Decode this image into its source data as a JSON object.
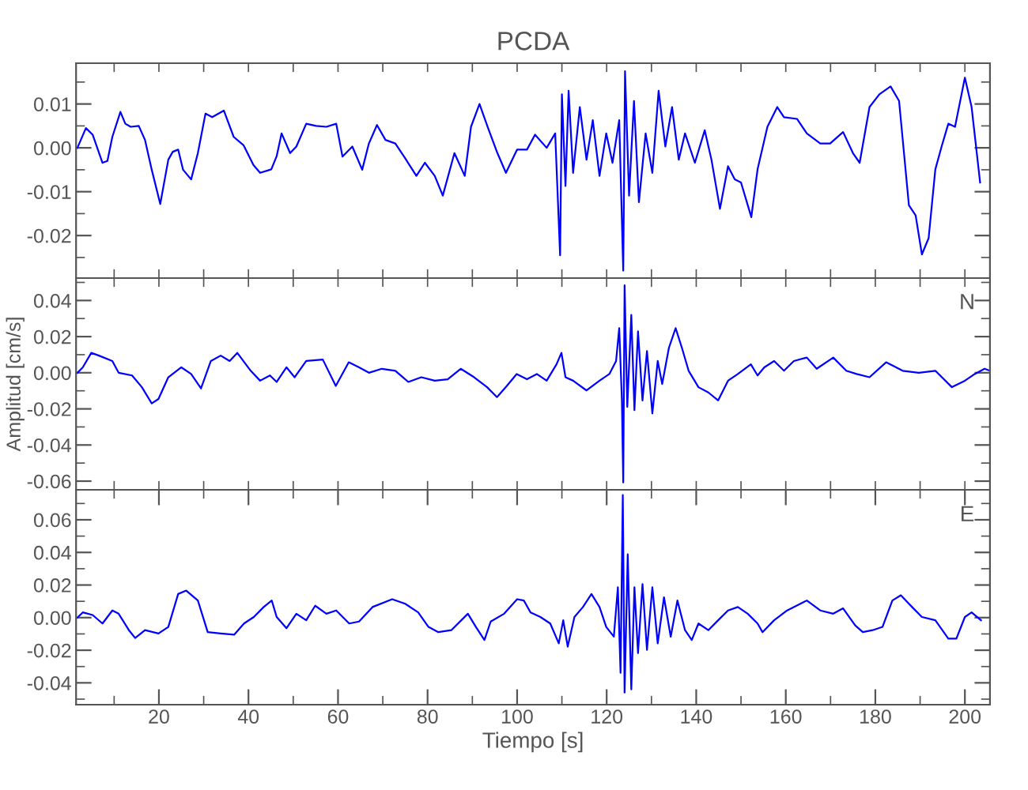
{
  "chart_data": [
    {
      "type": "line",
      "title": "PCDA",
      "xlim": [
        1.5,
        205.6
      ],
      "ylim": [
        -0.0297,
        0.0193
      ],
      "tick_labels": "y",
      "grid": false,
      "marker": "none",
      "line_style": "solid",
      "xticks": [
        {
          "value": 10,
          "label": null
        },
        {
          "value": 20,
          "label": null
        },
        {
          "value": 30,
          "label": null
        },
        {
          "value": 40,
          "label": null
        },
        {
          "value": 50,
          "label": null
        },
        {
          "value": 60,
          "label": null
        },
        {
          "value": 70,
          "label": null
        },
        {
          "value": 80,
          "label": null
        },
        {
          "value": 90,
          "label": null
        },
        {
          "value": 100,
          "label": null
        },
        {
          "value": 110,
          "label": null
        },
        {
          "value": 120,
          "label": null
        },
        {
          "value": 130,
          "label": null
        },
        {
          "value": 140,
          "label": null
        },
        {
          "value": 150,
          "label": null
        },
        {
          "value": 160,
          "label": null
        },
        {
          "value": 170,
          "label": null
        },
        {
          "value": 180,
          "label": null
        },
        {
          "value": 190,
          "label": null
        },
        {
          "value": 200,
          "label": null
        }
      ],
      "yticks": [
        {
          "value": -0.025,
          "label": null
        },
        {
          "value": -0.02,
          "label": "-0.02"
        },
        {
          "value": -0.015,
          "label": null
        },
        {
          "value": -0.01,
          "label": "-0.01"
        },
        {
          "value": -0.005,
          "label": null
        },
        {
          "value": 0.0,
          "label": "0.00"
        },
        {
          "value": 0.005,
          "label": null
        },
        {
          "value": 0.01,
          "label": "0.01"
        },
        {
          "value": 0.015,
          "label": null
        }
      ],
      "series": [
        {
          "color": "#0000ff",
          "x": [
            1.8,
            3.7,
            5.2,
            7.4,
            8.5,
            9.6,
            11.4,
            12.5,
            13.7,
            15.5,
            16.9,
            18.4,
            20.3,
            22.1,
            23.1,
            24.3,
            25.4,
            27.2,
            28.7,
            30.4,
            31.9,
            34.5,
            36.7,
            38.9,
            41.1,
            42.6,
            45.1,
            46.3,
            47.4,
            49.3,
            50.7,
            52.9,
            55.1,
            57.4,
            59.6,
            61.0,
            63.2,
            65.4,
            66.9,
            68.7,
            70.6,
            72.8,
            75.0,
            77.5,
            79.4,
            81.6,
            83.4,
            86.0,
            88.3,
            89.7,
            91.6,
            93.4,
            95.6,
            97.5,
            100.0,
            102.2,
            104.0,
            106.6,
            108.5,
            109.6,
            110.0,
            110.8,
            111.5,
            112.5,
            114.0,
            115.5,
            116.9,
            118.4,
            119.9,
            121.3,
            122.8,
            123.7,
            124.1,
            125.0,
            126.1,
            127.2,
            128.7,
            130.2,
            131.6,
            133.1,
            134.6,
            136.1,
            137.5,
            139.7,
            141.9,
            143.4,
            145.3,
            147.1,
            148.6,
            150.0,
            152.3,
            153.7,
            155.9,
            158.1,
            159.6,
            162.5,
            164.7,
            167.7,
            169.9,
            172.8,
            175.0,
            176.5,
            178.7,
            180.9,
            183.4,
            185.3,
            187.5,
            189.0,
            190.4,
            191.9,
            193.4,
            194.8,
            196.3,
            197.8,
            200.0,
            201.5,
            203.4
          ],
          "values": [
            0.0,
            0.0045,
            0.003,
            -0.0034,
            -0.003,
            0.0025,
            0.0082,
            0.0055,
            0.0048,
            0.005,
            0.0018,
            -0.005,
            -0.0128,
            -0.0027,
            -0.0009,
            -0.0004,
            -0.005,
            -0.0072,
            -0.0012,
            0.0078,
            0.007,
            0.0085,
            0.0025,
            0.0006,
            -0.0039,
            -0.0057,
            -0.0049,
            -0.0019,
            0.0033,
            -0.0012,
            0.0003,
            0.0055,
            0.005,
            0.0048,
            0.0055,
            -0.002,
            0.0003,
            -0.005,
            0.001,
            0.0052,
            0.0018,
            0.001,
            -0.0024,
            -0.0064,
            -0.0034,
            -0.0064,
            -0.0109,
            -0.0012,
            -0.0064,
            0.0048,
            0.01,
            0.0048,
            -0.0012,
            -0.0057,
            -0.0004,
            -0.0004,
            0.003,
            0.0,
            0.0033,
            -0.0245,
            0.0122,
            -0.0087,
            0.013,
            -0.0057,
            0.0093,
            -0.0027,
            0.0063,
            -0.0064,
            0.0033,
            -0.0034,
            0.0063,
            -0.028,
            0.0175,
            -0.0109,
            0.0107,
            -0.0124,
            0.0033,
            -0.0057,
            0.013,
            0.0003,
            0.0093,
            -0.0027,
            0.0033,
            -0.0034,
            0.004,
            -0.0027,
            -0.0139,
            -0.0042,
            -0.0072,
            -0.0079,
            -0.0158,
            -0.0049,
            0.0048,
            0.0093,
            0.007,
            0.0066,
            0.0033,
            0.001,
            0.001,
            0.0036,
            -0.0012,
            -0.0034,
            0.0093,
            0.0122,
            0.014,
            0.0107,
            -0.0131,
            -0.0154,
            -0.0243,
            -0.0206,
            -0.0049,
            0.0003,
            0.0055,
            0.0048,
            0.016,
            0.0093,
            -0.0079
          ]
        }
      ]
    },
    {
      "type": "line",
      "ylabel": "Amplitud [cm/s]",
      "annotations": [
        "N"
      ],
      "xlim": [
        1.5,
        205.6
      ],
      "ylim": [
        -0.0648,
        0.0524
      ],
      "tick_labels": "y",
      "grid": false,
      "marker": "none",
      "line_style": "solid",
      "xticks": [
        {
          "value": 10,
          "label": null
        },
        {
          "value": 20,
          "label": null
        },
        {
          "value": 30,
          "label": null
        },
        {
          "value": 40,
          "label": null
        },
        {
          "value": 50,
          "label": null
        },
        {
          "value": 60,
          "label": null
        },
        {
          "value": 70,
          "label": null
        },
        {
          "value": 80,
          "label": null
        },
        {
          "value": 90,
          "label": null
        },
        {
          "value": 100,
          "label": null
        },
        {
          "value": 110,
          "label": null
        },
        {
          "value": 120,
          "label": null
        },
        {
          "value": 130,
          "label": null
        },
        {
          "value": 140,
          "label": null
        },
        {
          "value": 150,
          "label": null
        },
        {
          "value": 160,
          "label": null
        },
        {
          "value": 170,
          "label": null
        },
        {
          "value": 180,
          "label": null
        },
        {
          "value": 190,
          "label": null
        },
        {
          "value": 200,
          "label": null
        }
      ],
      "yticks": [
        {
          "value": -0.06,
          "label": "-0.06"
        },
        {
          "value": -0.05,
          "label": null
        },
        {
          "value": -0.04,
          "label": "-0.04"
        },
        {
          "value": -0.03,
          "label": null
        },
        {
          "value": -0.02,
          "label": "-0.02"
        },
        {
          "value": -0.01,
          "label": null
        },
        {
          "value": 0.0,
          "label": "0.00"
        },
        {
          "value": 0.01,
          "label": null
        },
        {
          "value": 0.02,
          "label": "0.02"
        },
        {
          "value": 0.03,
          "label": null
        },
        {
          "value": 0.04,
          "label": "0.04"
        },
        {
          "value": 0.05,
          "label": null
        }
      ],
      "series": [
        {
          "color": "#0000ff",
          "x": [
            1.8,
            3.0,
            4.9,
            6.6,
            9.6,
            11.0,
            14.0,
            16.2,
            18.4,
            19.9,
            22.1,
            25.0,
            27.2,
            29.4,
            31.6,
            33.8,
            35.8,
            37.5,
            40.5,
            42.6,
            44.8,
            46.3,
            48.5,
            50.3,
            52.9,
            56.6,
            59.5,
            62.4,
            64.7,
            66.9,
            69.8,
            72.8,
            75.7,
            78.6,
            81.6,
            84.5,
            87.4,
            90.4,
            93.3,
            95.5,
            97.7,
            99.9,
            102.2,
            104.4,
            106.6,
            108.8,
            109.9,
            110.8,
            112.5,
            115.5,
            118.4,
            120.6,
            122.1,
            122.8,
            123.4,
            123.7,
            124.0,
            124.6,
            125.5,
            126.2,
            127.0,
            128.0,
            129.0,
            130.2,
            131.4,
            132.4,
            133.9,
            135.4,
            136.8,
            138.3,
            140.5,
            142.7,
            144.9,
            147.1,
            149.3,
            152.2,
            153.7,
            155.2,
            157.4,
            159.6,
            161.8,
            164.7,
            166.9,
            170.6,
            173.5,
            175.8,
            178.7,
            182.4,
            186.1,
            189.7,
            193.4,
            197.1,
            200.0,
            202.2,
            204.4,
            205.6
          ],
          "values": [
            0.0,
            0.003,
            0.011,
            0.0095,
            0.0065,
            0.0,
            -0.0015,
            -0.008,
            -0.017,
            -0.0145,
            -0.0025,
            0.003,
            -0.0007,
            -0.0087,
            0.0065,
            0.0095,
            0.0065,
            0.011,
            0.0011,
            -0.0044,
            -0.0015,
            -0.0051,
            0.003,
            -0.0025,
            0.0065,
            0.0073,
            -0.0073,
            0.0058,
            0.003,
            0.0,
            0.0022,
            0.0011,
            -0.0051,
            -0.0025,
            -0.0044,
            -0.0036,
            0.0022,
            -0.0025,
            -0.008,
            -0.0135,
            -0.0073,
            -0.0007,
            -0.0036,
            -0.0007,
            -0.0044,
            0.0047,
            0.011,
            -0.0025,
            -0.0044,
            -0.0098,
            -0.0044,
            -0.0007,
            0.0065,
            0.0247,
            -0.0153,
            -0.0607,
            0.0484,
            -0.0189,
            0.032,
            -0.0207,
            0.0229,
            -0.0153,
            0.012,
            -0.0225,
            0.0065,
            -0.0062,
            0.0138,
            0.0247,
            0.0138,
            0.0011,
            -0.008,
            -0.0109,
            -0.0153,
            -0.0044,
            -0.0007,
            0.0047,
            -0.0015,
            0.003,
            0.0065,
            0.0011,
            0.0065,
            0.0084,
            0.0022,
            0.0084,
            0.0011,
            -0.0007,
            -0.0025,
            0.0058,
            0.0011,
            0.0,
            0.0011,
            -0.008,
            -0.0044,
            -0.0007,
            0.0022,
            0.0011
          ]
        }
      ]
    },
    {
      "type": "line",
      "xlabel": "Tiempo [s]",
      "annotations": [
        "E"
      ],
      "xlim": [
        1.5,
        205.6
      ],
      "ylim": [
        -0.0534,
        0.0784
      ],
      "grid": false,
      "marker": "none",
      "line_style": "solid",
      "xticks": [
        {
          "value": 10,
          "label": null
        },
        20,
        {
          "value": 30,
          "label": null
        },
        40,
        {
          "value": 50,
          "label": null
        },
        60,
        {
          "value": 70,
          "label": null
        },
        80,
        {
          "value": 90,
          "label": null
        },
        100,
        {
          "value": 110,
          "label": null
        },
        120,
        {
          "value": 130,
          "label": null
        },
        140,
        {
          "value": 150,
          "label": null
        },
        160,
        {
          "value": 170,
          "label": null
        },
        180,
        {
          "value": 190,
          "label": null
        },
        200
      ],
      "yticks": [
        {
          "value": -0.05,
          "label": null
        },
        {
          "value": -0.04,
          "label": "-0.04"
        },
        {
          "value": -0.03,
          "label": null
        },
        {
          "value": -0.02,
          "label": "-0.02"
        },
        {
          "value": -0.01,
          "label": null
        },
        {
          "value": 0.0,
          "label": "0.00"
        },
        {
          "value": 0.01,
          "label": null
        },
        {
          "value": 0.02,
          "label": "0.02"
        },
        {
          "value": 0.03,
          "label": null
        },
        {
          "value": 0.04,
          "label": "0.04"
        },
        {
          "value": 0.05,
          "label": null
        },
        {
          "value": 0.06,
          "label": "0.06"
        },
        {
          "value": 0.07,
          "label": null
        }
      ],
      "series": [
        {
          "color": "#0000ff",
          "x": [
            1.8,
            3.0,
            5.2,
            7.4,
            9.6,
            11.0,
            13.3,
            14.7,
            16.9,
            19.9,
            22.1,
            24.3,
            26.1,
            28.7,
            30.9,
            33.8,
            36.8,
            39.0,
            41.2,
            43.4,
            45.2,
            46.3,
            48.5,
            50.7,
            52.9,
            54.9,
            57.4,
            59.6,
            62.5,
            64.7,
            67.7,
            72.1,
            75.0,
            77.9,
            80.2,
            82.4,
            85.3,
            89.0,
            90.8,
            92.7,
            94.1,
            97.1,
            100.0,
            101.5,
            103.0,
            105.2,
            107.4,
            109.3,
            110.3,
            111.3,
            112.8,
            114.7,
            116.6,
            118.4,
            119.9,
            121.6,
            122.5,
            123.1,
            123.6,
            124.0,
            124.7,
            125.5,
            126.2,
            127.0,
            128.0,
            129.0,
            130.2,
            131.4,
            132.8,
            134.3,
            135.8,
            137.5,
            139.0,
            140.5,
            142.7,
            144.9,
            147.1,
            149.3,
            151.5,
            153.7,
            154.8,
            157.4,
            160.3,
            164.7,
            167.7,
            170.6,
            172.8,
            175.5,
            177.2,
            179.4,
            181.6,
            183.8,
            185.7,
            188.2,
            190.4,
            193.4,
            196.3,
            198.1,
            200.0,
            201.5,
            203.6
          ],
          "values": [
            0.0,
            0.0032,
            0.0016,
            -0.0036,
            0.0044,
            0.0024,
            -0.0077,
            -0.0125,
            -0.0077,
            -0.0097,
            -0.0057,
            0.0145,
            0.0166,
            0.0105,
            -0.0089,
            -0.0097,
            -0.0105,
            -0.0036,
            0.0004,
            0.0065,
            0.0105,
            0.0004,
            -0.0065,
            0.0024,
            -0.0016,
            0.0073,
            0.0024,
            0.0044,
            -0.0036,
            -0.0024,
            0.0065,
            0.0113,
            0.0085,
            0.0032,
            -0.0057,
            -0.0089,
            -0.0077,
            0.0024,
            -0.0057,
            -0.0137,
            -0.0024,
            0.0024,
            0.0113,
            0.0105,
            0.0032,
            0.0004,
            -0.0036,
            -0.0158,
            -0.0016,
            -0.0178,
            0.0004,
            0.0065,
            0.0145,
            0.0065,
            -0.0057,
            -0.0117,
            0.0186,
            -0.0339,
            0.0752,
            -0.046,
            0.0388,
            -0.044,
            0.0186,
            -0.0218,
            0.0206,
            -0.0198,
            0.0186,
            -0.0158,
            0.0125,
            -0.0117,
            0.0105,
            -0.0077,
            -0.0137,
            -0.0036,
            -0.0077,
            -0.0016,
            0.0044,
            0.0065,
            0.0024,
            -0.0036,
            -0.0089,
            -0.0016,
            0.0044,
            0.0105,
            0.0044,
            0.0024,
            0.0057,
            -0.0048,
            -0.0089,
            -0.0077,
            -0.0057,
            0.0105,
            0.0137,
            0.0065,
            0.0004,
            -0.0016,
            -0.0129,
            -0.0129,
            0.0004,
            0.0032,
            -0.0016
          ]
        }
      ]
    }
  ]
}
